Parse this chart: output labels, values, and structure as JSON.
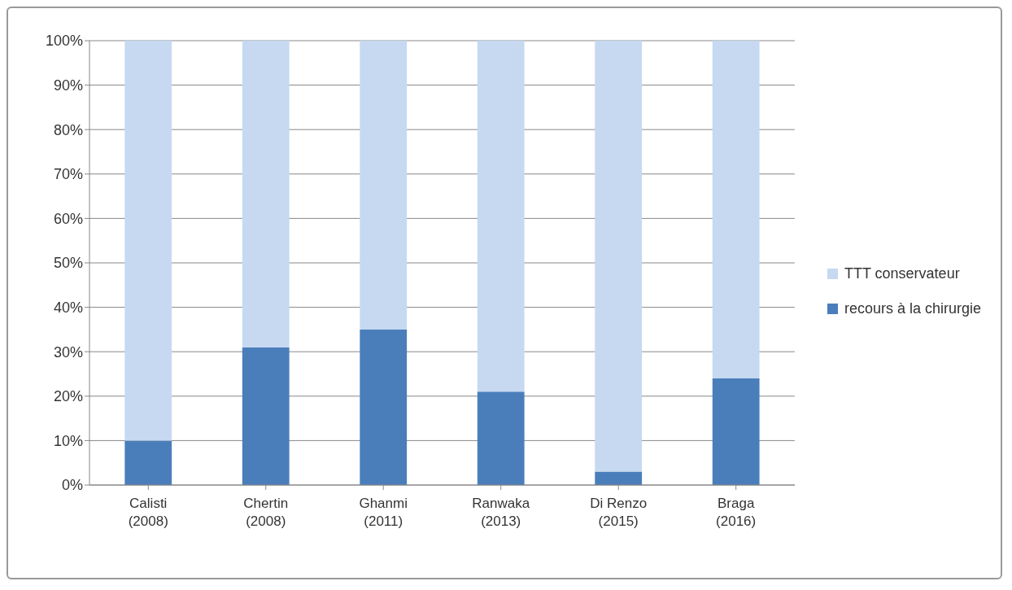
{
  "chart_data": {
    "type": "bar",
    "stacked": true,
    "categories": [
      "Calisti\n(2008)",
      "Chertin\n(2008)",
      "Ghanmi\n(2011)",
      "Ranwaka\n(2013)",
      "Di Renzo\n(2015)",
      "Braga\n(2016)"
    ],
    "series": [
      {
        "name": "recours à la chirurgie",
        "color": "#4a7ebb",
        "values": [
          10,
          31,
          35,
          21,
          3,
          24
        ]
      },
      {
        "name": "TTT conservateur",
        "color": "#c6d9f1",
        "values": [
          90,
          69,
          65,
          79,
          97,
          76
        ]
      }
    ],
    "ylim": [
      0,
      100
    ],
    "yticks": [
      {
        "value": 0,
        "label": "0%"
      },
      {
        "value": 10,
        "label": "10%"
      },
      {
        "value": 20,
        "label": "20%"
      },
      {
        "value": 30,
        "label": "30%"
      },
      {
        "value": 40,
        "label": "40%"
      },
      {
        "value": 50,
        "label": "50%"
      },
      {
        "value": 60,
        "label": "60%"
      },
      {
        "value": 70,
        "label": "70%"
      },
      {
        "value": 80,
        "label": "80%"
      },
      {
        "value": 90,
        "label": "90%"
      },
      {
        "value": 100,
        "label": "100%"
      }
    ],
    "grid": "y",
    "legend": "right"
  }
}
